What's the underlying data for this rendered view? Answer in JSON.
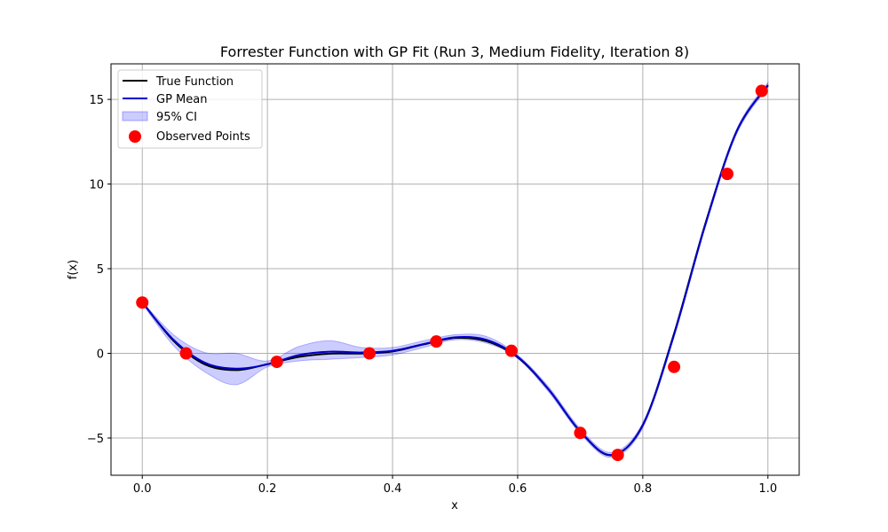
{
  "chart_data": {
    "type": "line",
    "title": "Forrester Function with GP Fit (Run 3, Medium Fidelity, Iteration 8)",
    "xlabel": "x",
    "ylabel": "f(x)",
    "xlim": [
      -0.05,
      1.05
    ],
    "ylim": [
      -7.2,
      17.1
    ],
    "xticks": [
      0.0,
      0.2,
      0.4,
      0.6,
      0.8,
      1.0
    ],
    "xtick_labels": [
      "0.0",
      "0.2",
      "0.4",
      "0.6",
      "0.8",
      "1.0"
    ],
    "yticks": [
      -5,
      0,
      5,
      10,
      15
    ],
    "ytick_labels": [
      "−5",
      "0",
      "5",
      "10",
      "15"
    ],
    "grid": true,
    "legend_position": "top-left",
    "colors": {
      "true_function": "#000000",
      "gp_mean": "#0000cc",
      "ci_fill": "#0000ff",
      "observed": "#ff0000",
      "grid": "#b0b0b0"
    },
    "series": [
      {
        "name": "True Function",
        "kind": "line",
        "x": [
          0.0,
          0.05,
          0.1,
          0.15,
          0.2,
          0.25,
          0.3,
          0.35,
          0.4,
          0.45,
          0.5,
          0.55,
          0.6,
          0.65,
          0.7,
          0.75,
          0.8,
          0.85,
          0.9,
          0.95,
          1.0
        ],
        "y": [
          3.03,
          0.74,
          -0.65,
          -0.99,
          -0.64,
          -0.21,
          -0.02,
          -0.01,
          0.11,
          0.53,
          0.91,
          0.72,
          -0.23,
          -2.16,
          -4.62,
          -6.02,
          -4.23,
          1.17,
          7.66,
          13.12,
          15.83
        ]
      },
      {
        "name": "GP Mean",
        "kind": "line",
        "x": [
          0.0,
          0.05,
          0.1,
          0.15,
          0.2,
          0.25,
          0.3,
          0.35,
          0.4,
          0.45,
          0.5,
          0.55,
          0.6,
          0.65,
          0.7,
          0.75,
          0.8,
          0.85,
          0.9,
          0.95,
          1.0
        ],
        "y": [
          3.0,
          0.8,
          -0.55,
          -0.9,
          -0.65,
          -0.1,
          0.1,
          0.05,
          0.15,
          0.55,
          0.95,
          0.8,
          -0.2,
          -2.15,
          -4.6,
          -6.0,
          -4.25,
          1.1,
          7.6,
          13.1,
          15.85
        ]
      },
      {
        "name": "95% CI",
        "kind": "band",
        "x": [
          0.0,
          0.05,
          0.1,
          0.15,
          0.2,
          0.25,
          0.3,
          0.35,
          0.4,
          0.45,
          0.5,
          0.55,
          0.6,
          0.65,
          0.7,
          0.75,
          0.8,
          0.85,
          0.9,
          0.95,
          1.0
        ],
        "lower": [
          2.95,
          0.45,
          -1.1,
          -1.85,
          -0.8,
          -0.45,
          -0.35,
          -0.25,
          -0.1,
          0.35,
          0.8,
          0.6,
          -0.3,
          -2.3,
          -4.75,
          -6.15,
          -4.4,
          0.95,
          7.45,
          12.95,
          15.7
        ],
        "upper": [
          3.05,
          1.1,
          0.05,
          0.0,
          -0.45,
          0.4,
          0.75,
          0.35,
          0.35,
          0.75,
          1.1,
          1.0,
          -0.1,
          -2.0,
          -4.45,
          -5.85,
          -4.1,
          1.25,
          7.75,
          13.25,
          16.0
        ]
      },
      {
        "name": "Observed Points",
        "kind": "scatter",
        "x": [
          0.0,
          0.07,
          0.215,
          0.363,
          0.47,
          0.59,
          0.7,
          0.76,
          0.85,
          0.935,
          0.99
        ],
        "y": [
          3.0,
          0.0,
          -0.5,
          0.0,
          0.7,
          0.15,
          -4.7,
          -6.0,
          -0.8,
          10.6,
          15.5
        ]
      }
    ]
  }
}
